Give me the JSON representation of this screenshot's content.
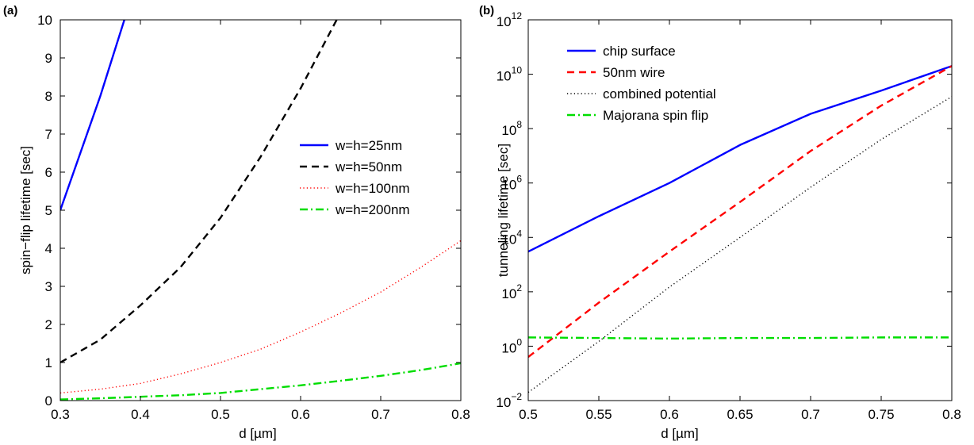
{
  "chart_data": [
    {
      "panel_label": "(a)",
      "type": "line",
      "xlabel": "d [µm]",
      "ylabel": "spin−flip lifetime [sec]",
      "xlim": [
        0.3,
        0.8
      ],
      "ylim": [
        0,
        10
      ],
      "yscale": "linear",
      "xticks": [
        "0.3",
        "0.4",
        "0.5",
        "0.6",
        "0.7",
        "0.8"
      ],
      "yticks": [
        "0",
        "1",
        "2",
        "3",
        "4",
        "5",
        "6",
        "7",
        "8",
        "9",
        "10"
      ],
      "grid": false,
      "legend_position": "right",
      "series": [
        {
          "name": "w=h=25nm",
          "color": "#0000ff",
          "style": "solid",
          "x": [
            0.3,
            0.35,
            0.38
          ],
          "y": [
            5.0,
            8.0,
            10.0
          ]
        },
        {
          "name": "w=h=50nm",
          "color": "#000000",
          "style": "dashed",
          "x": [
            0.3,
            0.35,
            0.4,
            0.45,
            0.5,
            0.55,
            0.6,
            0.645
          ],
          "y": [
            1.0,
            1.6,
            2.5,
            3.5,
            4.8,
            6.4,
            8.2,
            10.0
          ]
        },
        {
          "name": "w=h=100nm",
          "color": "#ff0000",
          "style": "dotted",
          "x": [
            0.3,
            0.35,
            0.4,
            0.45,
            0.5,
            0.55,
            0.6,
            0.65,
            0.7,
            0.75,
            0.8
          ],
          "y": [
            0.2,
            0.3,
            0.45,
            0.7,
            1.0,
            1.35,
            1.8,
            2.3,
            2.85,
            3.5,
            4.2
          ]
        },
        {
          "name": "w=h=200nm",
          "color": "#00dd00",
          "style": "dashdot",
          "x": [
            0.3,
            0.35,
            0.4,
            0.45,
            0.5,
            0.55,
            0.6,
            0.65,
            0.7,
            0.75,
            0.8
          ],
          "y": [
            0.03,
            0.06,
            0.1,
            0.14,
            0.2,
            0.3,
            0.4,
            0.52,
            0.65,
            0.8,
            0.98
          ]
        }
      ]
    },
    {
      "panel_label": "(b)",
      "type": "line",
      "xlabel": "d [µm]",
      "ylabel": "tunneling lifetime [sec]",
      "xlim": [
        0.5,
        0.8
      ],
      "ylim": [
        0.01,
        1000000000000
      ],
      "yscale": "log",
      "xticks": [
        "0.5",
        "0.55",
        "0.6",
        "0.65",
        "0.7",
        "0.75",
        "0.8"
      ],
      "yticks": [
        {
          "base": "10",
          "exp": "−2"
        },
        {
          "base": "10",
          "exp": "0"
        },
        {
          "base": "10",
          "exp": "2"
        },
        {
          "base": "10",
          "exp": "4"
        },
        {
          "base": "10",
          "exp": "6"
        },
        {
          "base": "10",
          "exp": "8"
        },
        {
          "base": "10",
          "exp": "10"
        },
        {
          "base": "10",
          "exp": "12"
        }
      ],
      "ytick_values": [
        0.01,
        1,
        100,
        10000,
        1000000,
        100000000,
        10000000000,
        1000000000000
      ],
      "grid": false,
      "legend_position": "top-left",
      "series": [
        {
          "name": "chip surface",
          "color": "#0000ff",
          "style": "solid",
          "x": [
            0.5,
            0.55,
            0.6,
            0.65,
            0.7,
            0.75,
            0.8
          ],
          "y": [
            3000,
            60000,
            1000000,
            25000000,
            350000000,
            2500000000,
            20000000000
          ]
        },
        {
          "name": "50nm wire",
          "color": "#ff0000",
          "style": "dashed",
          "x": [
            0.5,
            0.55,
            0.6,
            0.65,
            0.7,
            0.75,
            0.8
          ],
          "y": [
            0.4,
            40,
            3000,
            200000,
            15000000,
            700000000,
            20000000000
          ]
        },
        {
          "name": "combined potential",
          "color": "#000000",
          "style": "dotted",
          "x": [
            0.5,
            0.55,
            0.6,
            0.65,
            0.7,
            0.75,
            0.8
          ],
          "y": [
            0.02,
            1.5,
            150,
            10000,
            700000,
            40000000,
            1500000000
          ]
        },
        {
          "name": "Majorana spin flip",
          "color": "#00dd00",
          "style": "dashdot",
          "x": [
            0.5,
            0.55,
            0.6,
            0.65,
            0.7,
            0.75,
            0.8
          ],
          "y": [
            2.1,
            2.0,
            1.9,
            2.0,
            2.0,
            2.1,
            2.1
          ]
        }
      ]
    }
  ]
}
